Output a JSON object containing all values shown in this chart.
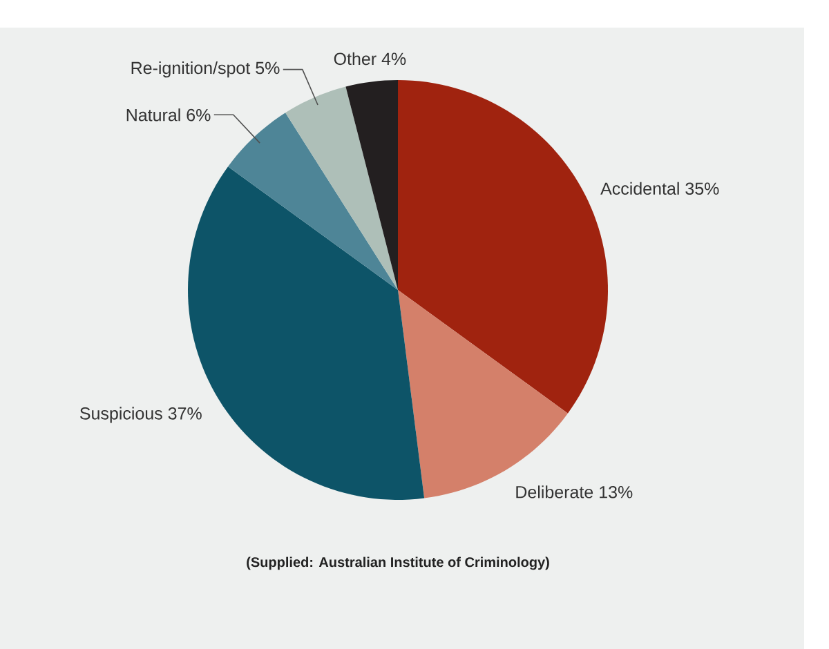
{
  "chart_data": {
    "type": "pie",
    "categories": [
      "Accidental",
      "Deliberate",
      "Suspicious",
      "Natural",
      "Re-ignition/spot",
      "Other"
    ],
    "values": [
      35,
      13,
      37,
      6,
      5,
      4
    ],
    "value_labels": [
      "35%",
      "13%",
      "37%",
      "6%",
      "5%",
      "4%"
    ],
    "colors": [
      "#a0230f",
      "#d4806a",
      "#0d5468",
      "#4e8597",
      "#aebfb8",
      "#231f20"
    ],
    "annotations": [
      "(Supplied: Australian Institute of Criminology)"
    ]
  }
}
